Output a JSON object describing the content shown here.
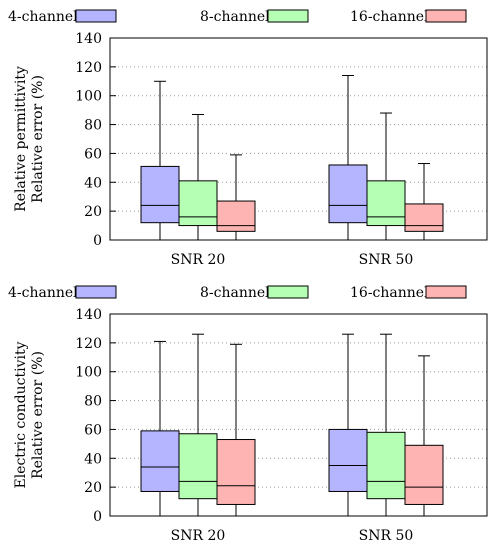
{
  "chart_data": [
    {
      "type": "box",
      "ylabel_line1": "Relative permittivity",
      "ylabel_line2": "Relative error (%)",
      "ylim": [
        0,
        140
      ],
      "yticks": [
        0,
        20,
        40,
        60,
        80,
        100,
        120,
        140
      ],
      "grid": "horizontal-dotted",
      "legend_placement": "top",
      "categories": [
        "SNR 20",
        "SNR 50"
      ],
      "series": [
        {
          "name": "4-channels",
          "color": "#b4b4ff",
          "boxes": [
            {
              "min": 0,
              "q1": 12,
              "median": 24,
              "q3": 51,
              "max": 110
            },
            {
              "min": 0,
              "q1": 12,
              "median": 24,
              "q3": 52,
              "max": 114
            }
          ]
        },
        {
          "name": "8-channels",
          "color": "#b4ffb4",
          "boxes": [
            {
              "min": 0,
              "q1": 10,
              "median": 16,
              "q3": 41,
              "max": 87
            },
            {
              "min": 0,
              "q1": 10,
              "median": 16,
              "q3": 41,
              "max": 88
            }
          ]
        },
        {
          "name": "16-channels",
          "color": "#ffb4b4",
          "boxes": [
            {
              "min": 0,
              "q1": 6,
              "median": 10,
              "q3": 27,
              "max": 59
            },
            {
              "min": 0,
              "q1": 6,
              "median": 10,
              "q3": 25,
              "max": 53
            }
          ]
        }
      ]
    },
    {
      "type": "box",
      "ylabel_line1": "Electric conductivity",
      "ylabel_line2": "Relative error (%)",
      "ylim": [
        0,
        140
      ],
      "yticks": [
        0,
        20,
        40,
        60,
        80,
        100,
        120,
        140
      ],
      "grid": "horizontal-dotted",
      "legend_placement": "top",
      "categories": [
        "SNR 20",
        "SNR 50"
      ],
      "series": [
        {
          "name": "4-channels",
          "color": "#b4b4ff",
          "boxes": [
            {
              "min": 0,
              "q1": 17,
              "median": 34,
              "q3": 59,
              "max": 121
            },
            {
              "min": 0,
              "q1": 17,
              "median": 35,
              "q3": 60,
              "max": 126
            }
          ]
        },
        {
          "name": "8-channels",
          "color": "#b4ffb4",
          "boxes": [
            {
              "min": 0,
              "q1": 12,
              "median": 24,
              "q3": 57,
              "max": 126
            },
            {
              "min": 0,
              "q1": 12,
              "median": 24,
              "q3": 58,
              "max": 126
            }
          ]
        },
        {
          "name": "16-channels",
          "color": "#ffb4b4",
          "boxes": [
            {
              "min": 0,
              "q1": 8,
              "median": 21,
              "q3": 53,
              "max": 119
            },
            {
              "min": 0,
              "q1": 8,
              "median": 20,
              "q3": 49,
              "max": 111
            }
          ]
        }
      ]
    }
  ]
}
